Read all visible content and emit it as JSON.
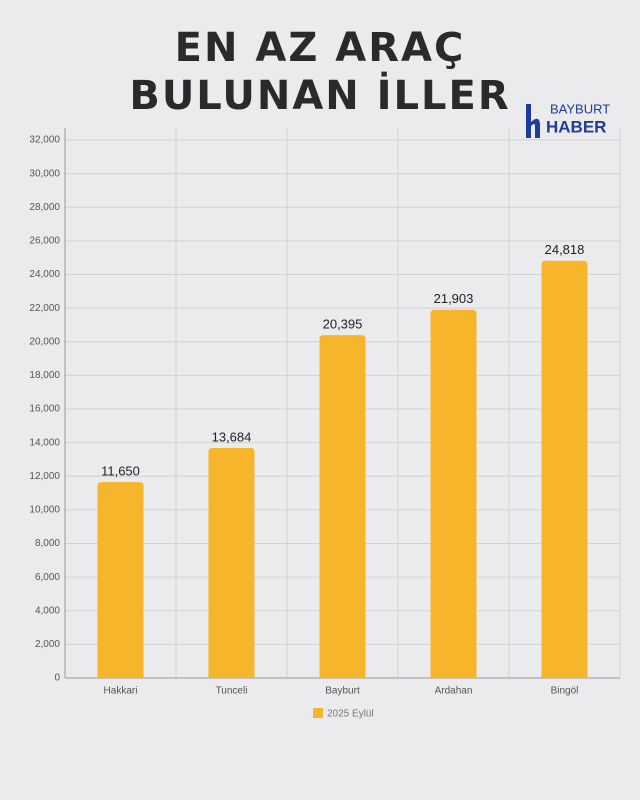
{
  "logo": {
    "top": "BAYBURT",
    "bottom": "HABER"
  },
  "chart_data": {
    "type": "bar",
    "title": "EN AZ ARAÇ BULUNAN İLLER",
    "categories": [
      "Hakkari",
      "Tunceli",
      "Bayburt",
      "Ardahan",
      "Bingöl"
    ],
    "series": [
      {
        "name": "2025 Eylül",
        "color": "#f7b52c",
        "values": [
          11650,
          13684,
          20395,
          21903,
          24818
        ],
        "value_labels": [
          "11,650",
          "13,684",
          "20,395",
          "21,903",
          "24,818"
        ]
      }
    ],
    "ylim": [
      0,
      32000
    ],
    "yticks": [
      0,
      {
        "value": 2000,
        "label": "2,000"
      },
      {
        "value": 4000,
        "label": "4,000"
      },
      {
        "value": 6000,
        "label": "6,000"
      },
      {
        "value": 8000,
        "label": "8,000"
      },
      {
        "value": 10000,
        "label": "10,000"
      },
      {
        "value": 12000,
        "label": "12,000"
      },
      {
        "value": 14000,
        "label": "14,000"
      },
      {
        "value": 16000,
        "label": "16,000"
      },
      {
        "value": 18000,
        "label": "18,000"
      },
      {
        "value": 20000,
        "label": "20,000"
      },
      {
        "value": 22000,
        "label": "22,000"
      },
      {
        "value": 24000,
        "label": "24,000"
      },
      {
        "value": 26000,
        "label": "26,000"
      },
      {
        "value": 28000,
        "label": "28,000"
      },
      {
        "value": 30000,
        "label": "30,000"
      },
      {
        "value": 32000,
        "label": "32,000"
      }
    ],
    "grid": true,
    "legend": "bottom"
  }
}
